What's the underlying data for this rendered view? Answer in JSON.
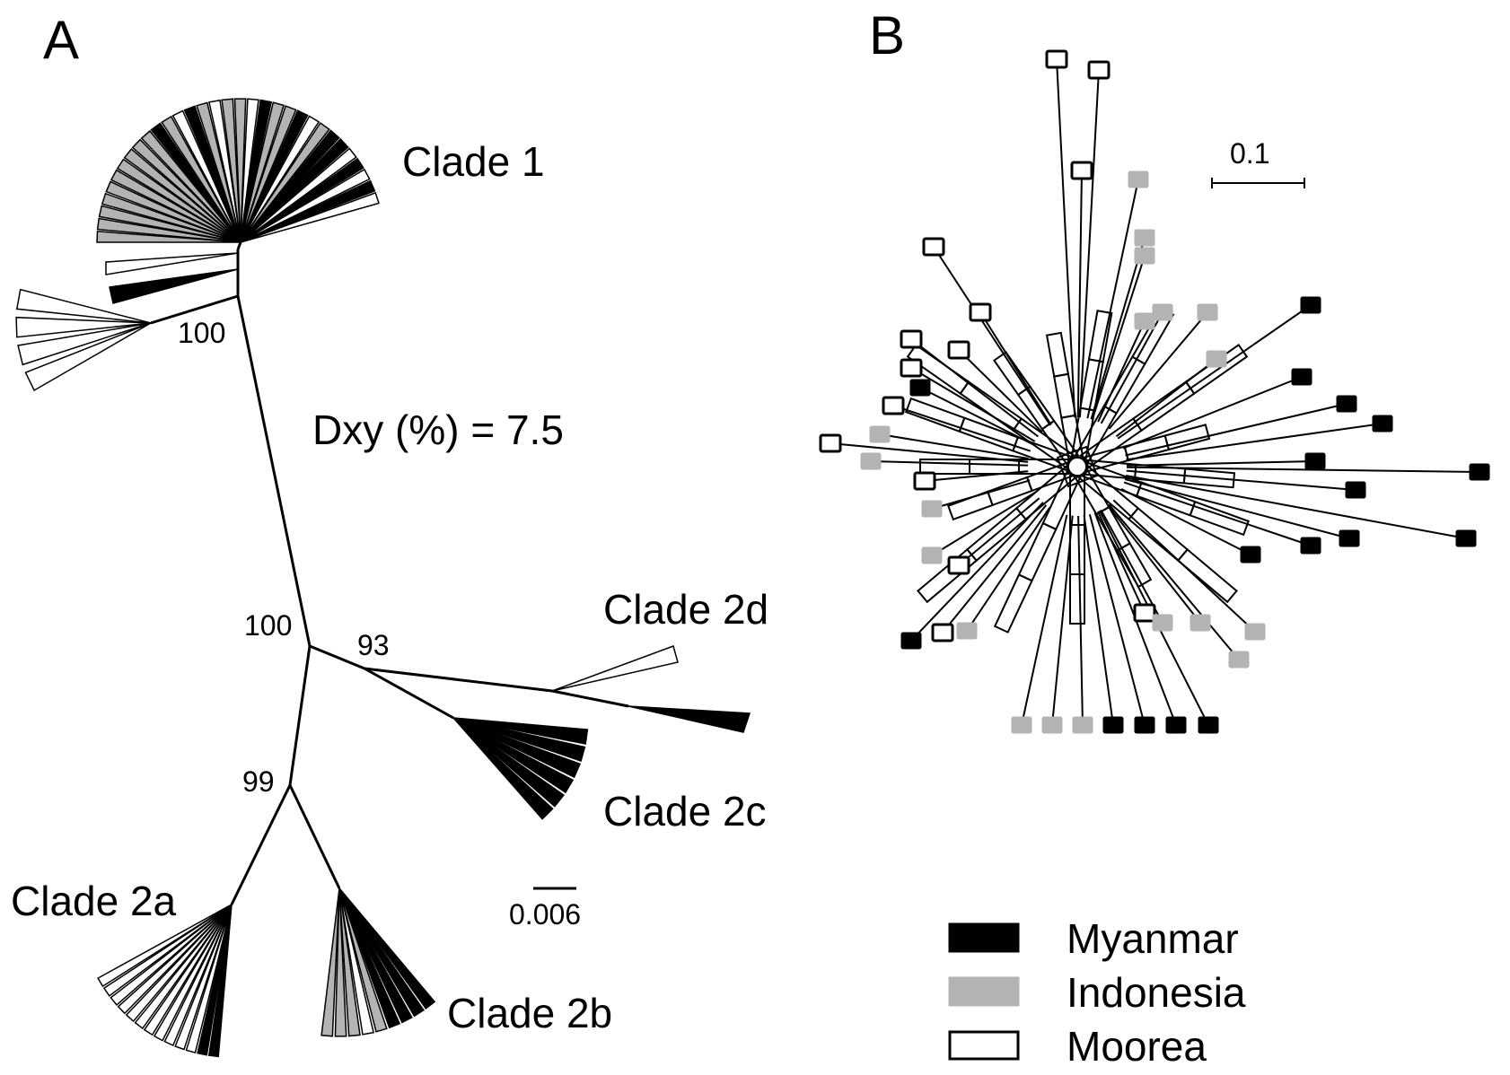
{
  "panel_a": {
    "letter": "A",
    "clades": [
      "Clade 1",
      "Clade 2a",
      "Clade 2b",
      "Clade 2c",
      "Clade 2d"
    ],
    "bootstrap": [
      "100",
      "100",
      "93",
      "99"
    ],
    "dxy": "Dxy (%) = 7.5",
    "scale_label": "0.006"
  },
  "panel_b": {
    "letter": "B",
    "scale_label": "0.1"
  },
  "legend": [
    {
      "label": "Myanmar",
      "color": "#000000"
    },
    {
      "label": "Indonesia",
      "color": "#b3b3b3"
    },
    {
      "label": "Moorea",
      "color": "#ffffff"
    }
  ],
  "colors": {
    "myanmar": "#000000",
    "indonesia": "#b3b3b3",
    "moorea": "#ffffff",
    "outline": "#000000"
  }
}
